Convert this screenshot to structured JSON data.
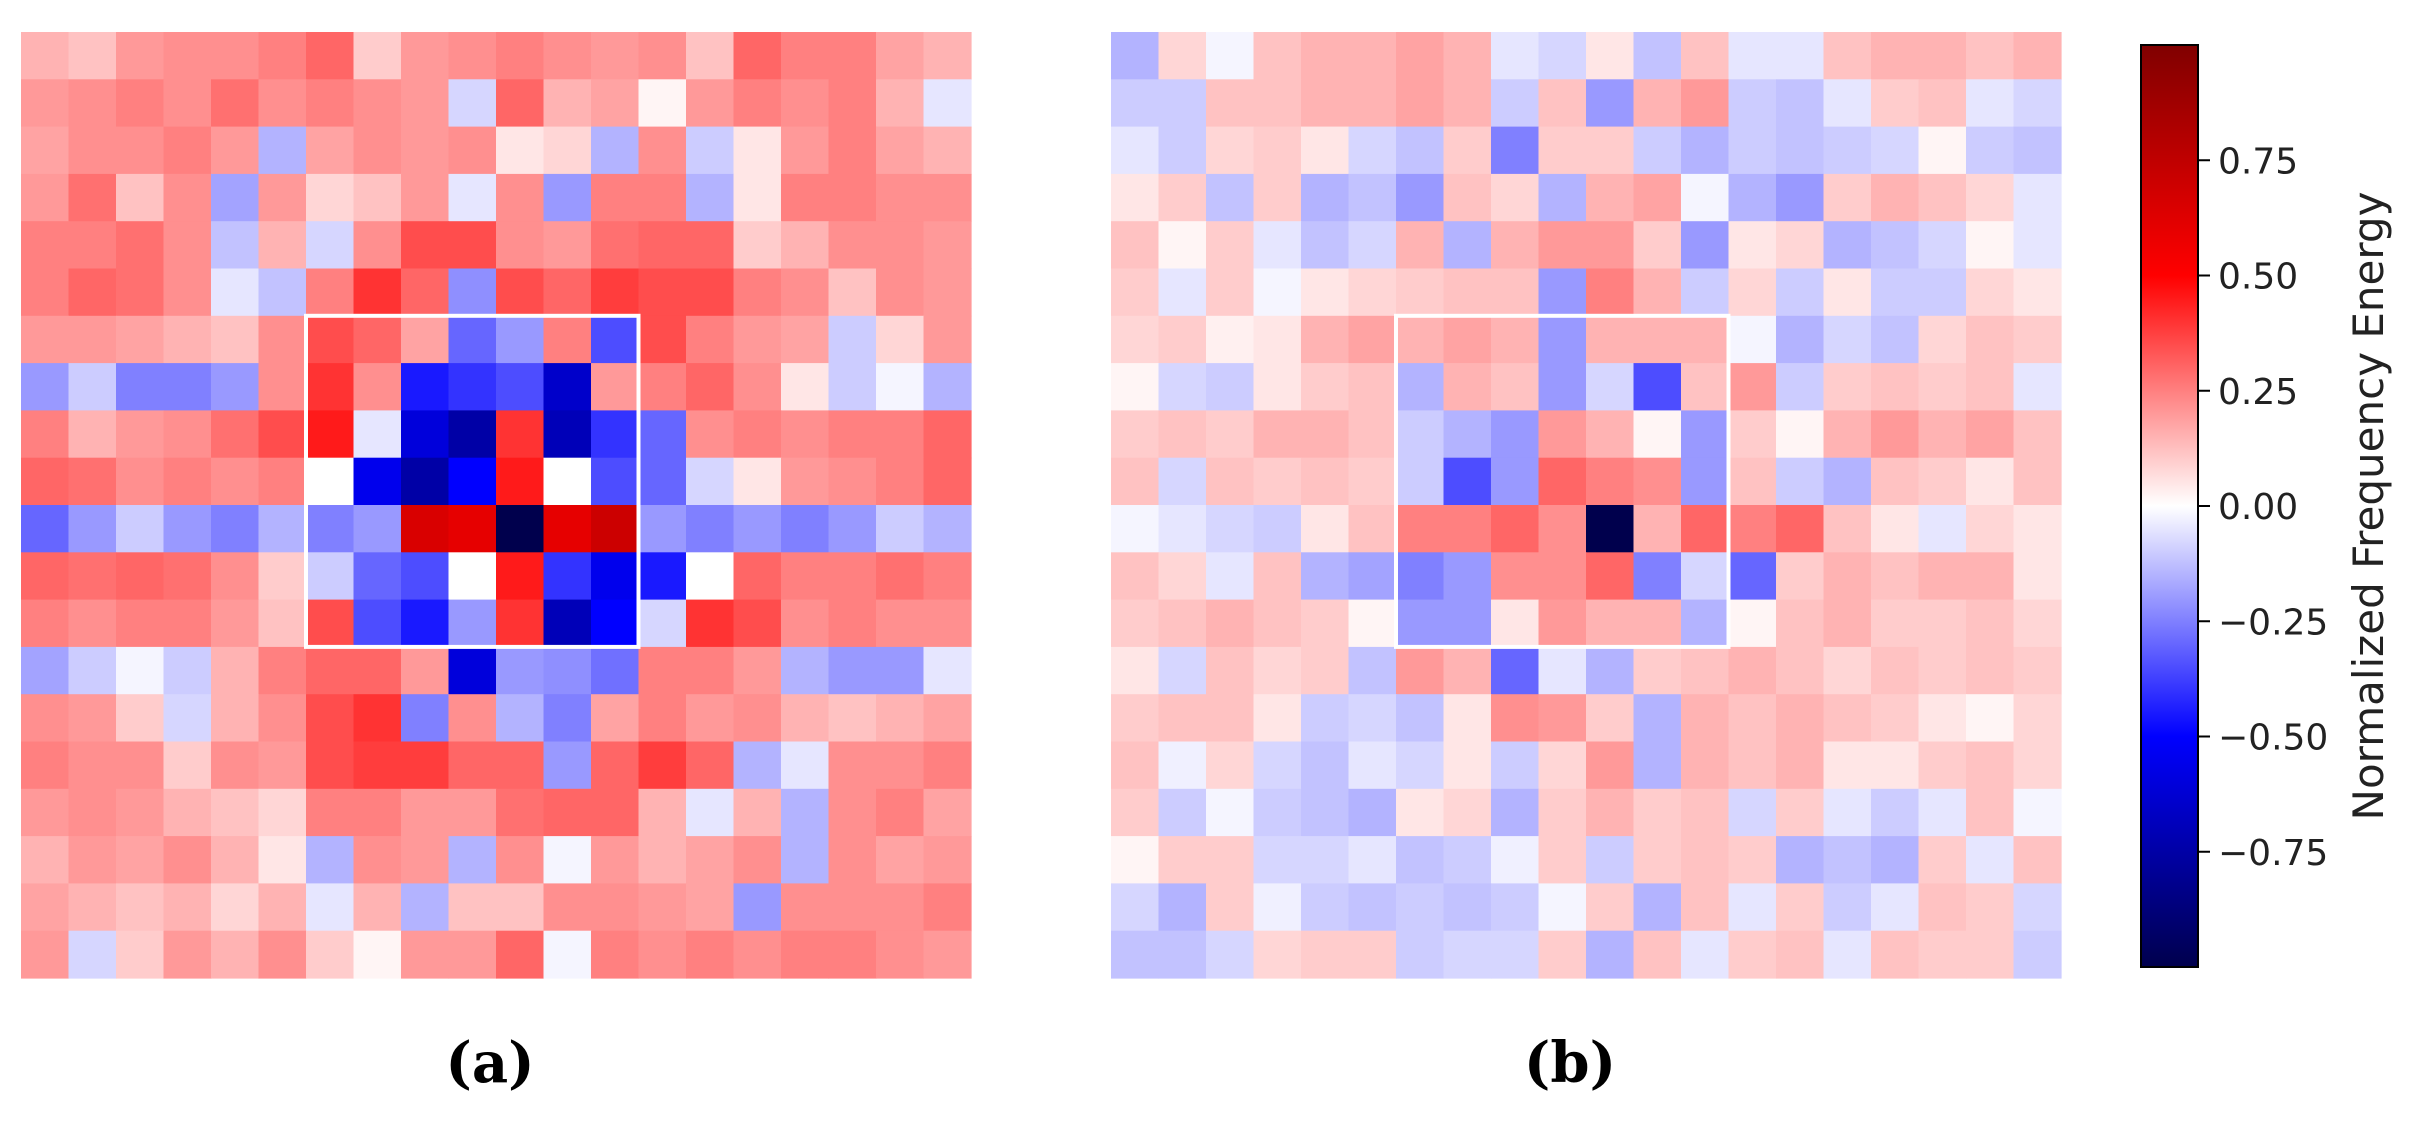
{
  "chart_data": [
    {
      "type": "heatmap",
      "panel_label": "(a)",
      "rows": 20,
      "cols": 20,
      "highlight_box": {
        "row_start": 6,
        "row_end": 13,
        "col_start": 6,
        "col_end": 13,
        "color": "#ffffff"
      },
      "values": [
        [
          0.15,
          0.12,
          0.2,
          0.22,
          0.22,
          0.25,
          0.3,
          0.1,
          0.2,
          0.22,
          0.25,
          0.22,
          0.2,
          0.22,
          0.12,
          0.3,
          0.25,
          0.25,
          0.18,
          0.15
        ],
        [
          0.2,
          0.22,
          0.25,
          0.22,
          0.28,
          0.22,
          0.25,
          0.22,
          0.2,
          -0.08,
          0.3,
          0.15,
          0.18,
          0.02,
          0.2,
          0.25,
          0.22,
          0.25,
          0.15,
          -0.05
        ],
        [
          0.18,
          0.22,
          0.22,
          0.25,
          0.2,
          -0.15,
          0.18,
          0.22,
          0.2,
          0.22,
          0.05,
          0.08,
          -0.15,
          0.22,
          -0.1,
          0.05,
          0.2,
          0.25,
          0.18,
          0.15
        ],
        [
          0.2,
          0.28,
          0.12,
          0.22,
          -0.18,
          0.2,
          0.08,
          0.12,
          0.2,
          -0.05,
          0.22,
          -0.2,
          0.25,
          0.25,
          -0.15,
          0.05,
          0.25,
          0.25,
          0.22,
          0.22
        ],
        [
          0.25,
          0.25,
          0.28,
          0.22,
          -0.12,
          0.15,
          -0.08,
          0.22,
          0.35,
          0.35,
          0.22,
          0.2,
          0.28,
          0.3,
          0.3,
          0.1,
          0.15,
          0.22,
          0.22,
          0.2
        ],
        [
          0.25,
          0.3,
          0.28,
          0.22,
          -0.05,
          -0.12,
          0.25,
          0.4,
          0.3,
          -0.22,
          0.35,
          0.3,
          0.38,
          0.35,
          0.35,
          0.25,
          0.22,
          0.12,
          0.22,
          0.2
        ],
        [
          0.2,
          0.2,
          0.18,
          0.15,
          0.12,
          0.22,
          0.35,
          0.3,
          0.18,
          -0.3,
          -0.2,
          0.25,
          -0.35,
          0.35,
          0.25,
          0.2,
          0.18,
          -0.1,
          0.08,
          0.2
        ],
        [
          -0.2,
          -0.1,
          -0.25,
          -0.25,
          -0.2,
          0.22,
          0.4,
          0.22,
          -0.45,
          -0.4,
          -0.35,
          -0.65,
          0.2,
          0.25,
          0.3,
          0.22,
          0.05,
          -0.1,
          -0.02,
          -0.15
        ],
        [
          0.25,
          0.15,
          0.2,
          0.22,
          0.28,
          0.35,
          0.45,
          -0.05,
          -0.6,
          -0.75,
          0.4,
          -0.7,
          -0.4,
          -0.3,
          0.22,
          0.25,
          0.22,
          0.25,
          0.25,
          0.3
        ],
        [
          0.3,
          0.28,
          0.22,
          0.25,
          0.22,
          0.25,
          0.0,
          -0.55,
          -0.75,
          -0.5,
          0.45,
          0.0,
          -0.35,
          -0.3,
          -0.08,
          0.05,
          0.2,
          0.22,
          0.25,
          0.3
        ],
        [
          -0.3,
          -0.2,
          -0.1,
          -0.2,
          -0.25,
          -0.15,
          -0.25,
          -0.2,
          0.65,
          0.6,
          -1.0,
          0.6,
          0.7,
          -0.2,
          -0.25,
          -0.2,
          -0.25,
          -0.2,
          -0.1,
          -0.15
        ],
        [
          0.3,
          0.28,
          0.3,
          0.28,
          0.22,
          0.1,
          -0.1,
          -0.3,
          -0.35,
          0.0,
          0.45,
          -0.4,
          -0.55,
          -0.45,
          0.0,
          0.3,
          0.25,
          0.25,
          0.28,
          0.25
        ],
        [
          0.25,
          0.22,
          0.25,
          0.25,
          0.2,
          0.12,
          0.35,
          -0.35,
          -0.45,
          -0.2,
          0.4,
          -0.7,
          -0.5,
          -0.08,
          0.4,
          0.35,
          0.22,
          0.25,
          0.22,
          0.22
        ],
        [
          -0.18,
          -0.1,
          -0.02,
          -0.1,
          0.15,
          0.25,
          0.3,
          0.3,
          0.2,
          -0.6,
          -0.2,
          -0.22,
          -0.28,
          0.25,
          0.25,
          0.2,
          -0.15,
          -0.2,
          -0.2,
          -0.05
        ],
        [
          0.22,
          0.2,
          0.1,
          -0.08,
          0.15,
          0.22,
          0.35,
          0.4,
          -0.25,
          0.22,
          -0.15,
          -0.25,
          0.18,
          0.25,
          0.2,
          0.22,
          0.15,
          0.12,
          0.15,
          0.18
        ],
        [
          0.25,
          0.22,
          0.22,
          0.1,
          0.22,
          0.2,
          0.35,
          0.38,
          0.38,
          0.3,
          0.3,
          -0.2,
          0.3,
          0.38,
          0.3,
          -0.15,
          -0.05,
          0.22,
          0.22,
          0.25
        ],
        [
          0.2,
          0.22,
          0.2,
          0.15,
          0.12,
          0.08,
          0.25,
          0.25,
          0.2,
          0.2,
          0.28,
          0.3,
          0.3,
          0.15,
          -0.05,
          0.15,
          -0.15,
          0.22,
          0.25,
          0.18
        ],
        [
          0.15,
          0.2,
          0.18,
          0.22,
          0.15,
          0.05,
          -0.15,
          0.22,
          0.2,
          -0.15,
          0.22,
          -0.02,
          0.2,
          0.15,
          0.18,
          0.22,
          -0.15,
          0.22,
          0.18,
          0.2
        ],
        [
          0.18,
          0.15,
          0.12,
          0.15,
          0.08,
          0.15,
          -0.05,
          0.15,
          -0.15,
          0.12,
          0.12,
          0.22,
          0.22,
          0.2,
          0.18,
          -0.2,
          0.22,
          0.22,
          0.22,
          0.25
        ],
        [
          0.2,
          -0.08,
          0.1,
          0.2,
          0.15,
          0.22,
          0.1,
          0.02,
          0.2,
          0.2,
          0.3,
          -0.02,
          0.25,
          0.22,
          0.25,
          0.22,
          0.25,
          0.25,
          0.22,
          0.2
        ]
      ]
    },
    {
      "type": "heatmap",
      "panel_label": "(b)",
      "rows": 20,
      "cols": 20,
      "highlight_box": {
        "row_start": 6,
        "row_end": 13,
        "col_start": 6,
        "col_end": 13,
        "color": "#ffffff"
      },
      "values": [
        [
          -0.15,
          0.08,
          -0.02,
          0.12,
          0.15,
          0.15,
          0.18,
          0.15,
          -0.05,
          -0.08,
          0.05,
          -0.12,
          0.12,
          -0.05,
          -0.05,
          0.12,
          0.15,
          0.15,
          0.12,
          0.15
        ],
        [
          -0.1,
          -0.1,
          0.12,
          0.12,
          0.15,
          0.15,
          0.18,
          0.15,
          -0.1,
          0.12,
          -0.2,
          0.15,
          0.2,
          -0.1,
          -0.12,
          -0.05,
          0.1,
          0.12,
          -0.05,
          -0.08
        ],
        [
          -0.05,
          -0.1,
          0.08,
          0.1,
          0.05,
          -0.08,
          -0.12,
          0.1,
          -0.25,
          0.1,
          0.1,
          -0.1,
          -0.15,
          -0.1,
          -0.12,
          -0.1,
          -0.08,
          0.02,
          -0.1,
          -0.12
        ],
        [
          0.05,
          0.1,
          -0.12,
          0.1,
          -0.15,
          -0.12,
          -0.2,
          0.12,
          0.08,
          -0.15,
          0.15,
          0.18,
          -0.02,
          -0.15,
          -0.2,
          0.1,
          0.15,
          0.12,
          0.08,
          -0.05
        ],
        [
          0.12,
          0.02,
          0.1,
          -0.05,
          -0.12,
          -0.08,
          0.15,
          -0.15,
          0.15,
          0.2,
          0.2,
          0.1,
          -0.2,
          0.05,
          0.08,
          -0.15,
          -0.12,
          -0.08,
          0.02,
          -0.05
        ],
        [
          0.1,
          -0.05,
          0.1,
          -0.02,
          0.05,
          0.08,
          0.1,
          0.12,
          0.12,
          -0.2,
          0.25,
          0.15,
          -0.1,
          0.08,
          -0.1,
          0.05,
          -0.1,
          -0.1,
          0.08,
          0.05
        ],
        [
          0.08,
          0.1,
          0.03,
          0.05,
          0.15,
          0.18,
          0.15,
          0.18,
          0.15,
          -0.2,
          0.15,
          0.15,
          0.15,
          -0.02,
          -0.15,
          -0.08,
          -0.12,
          0.08,
          0.12,
          0.1
        ],
        [
          0.02,
          -0.08,
          -0.1,
          0.05,
          0.1,
          0.12,
          -0.15,
          0.15,
          0.12,
          -0.2,
          -0.08,
          -0.35,
          0.12,
          0.2,
          -0.1,
          0.1,
          0.12,
          0.1,
          0.12,
          -0.05
        ],
        [
          0.1,
          0.12,
          0.1,
          0.15,
          0.15,
          0.12,
          -0.1,
          -0.15,
          -0.2,
          0.2,
          0.15,
          0.02,
          -0.2,
          0.1,
          0.02,
          0.15,
          0.2,
          0.15,
          0.18,
          0.12
        ],
        [
          0.12,
          -0.08,
          0.12,
          0.1,
          0.12,
          0.1,
          -0.1,
          -0.35,
          -0.2,
          0.3,
          0.25,
          0.22,
          -0.2,
          0.12,
          -0.1,
          -0.15,
          0.12,
          0.1,
          0.05,
          0.12
        ],
        [
          -0.02,
          -0.05,
          -0.08,
          -0.1,
          0.05,
          0.12,
          0.25,
          0.25,
          0.3,
          0.22,
          -1.0,
          0.15,
          0.3,
          0.25,
          0.3,
          0.12,
          0.05,
          -0.05,
          0.08,
          0.05
        ],
        [
          0.12,
          0.08,
          -0.05,
          0.12,
          -0.15,
          -0.18,
          -0.25,
          -0.2,
          0.22,
          0.22,
          0.3,
          -0.25,
          -0.08,
          -0.3,
          0.1,
          0.15,
          0.12,
          0.15,
          0.15,
          0.05
        ],
        [
          0.1,
          0.12,
          0.15,
          0.12,
          0.1,
          0.02,
          -0.2,
          -0.2,
          0.05,
          0.2,
          0.15,
          0.15,
          -0.15,
          0.02,
          0.12,
          0.15,
          0.1,
          0.1,
          0.12,
          0.08
        ],
        [
          0.05,
          -0.08,
          0.12,
          0.08,
          0.1,
          -0.12,
          0.2,
          0.15,
          -0.3,
          -0.05,
          -0.15,
          0.1,
          0.12,
          0.15,
          0.12,
          0.08,
          0.12,
          0.1,
          0.12,
          0.1
        ],
        [
          0.1,
          0.12,
          0.12,
          0.05,
          -0.1,
          -0.08,
          -0.12,
          0.05,
          0.22,
          0.2,
          0.1,
          -0.15,
          0.15,
          0.12,
          0.15,
          0.12,
          0.1,
          0.05,
          0.02,
          0.08
        ],
        [
          0.12,
          -0.03,
          0.08,
          -0.08,
          -0.12,
          -0.05,
          -0.08,
          0.05,
          -0.1,
          0.08,
          0.2,
          -0.15,
          0.15,
          0.12,
          0.15,
          0.05,
          0.05,
          0.1,
          0.12,
          0.08
        ],
        [
          0.1,
          -0.1,
          -0.02,
          -0.1,
          -0.12,
          -0.15,
          0.05,
          0.08,
          -0.15,
          0.1,
          0.15,
          0.1,
          0.12,
          -0.08,
          0.1,
          -0.05,
          -0.1,
          -0.05,
          0.12,
          -0.02
        ],
        [
          0.02,
          0.1,
          0.1,
          -0.08,
          -0.08,
          -0.05,
          -0.12,
          -0.1,
          -0.03,
          0.1,
          -0.1,
          0.1,
          0.12,
          0.1,
          -0.15,
          -0.12,
          -0.15,
          0.1,
          -0.05,
          0.12
        ],
        [
          -0.08,
          -0.15,
          0.1,
          -0.03,
          -0.1,
          -0.12,
          -0.1,
          -0.12,
          -0.1,
          -0.02,
          0.1,
          -0.15,
          0.12,
          -0.05,
          0.1,
          -0.1,
          -0.05,
          0.12,
          0.1,
          -0.08
        ],
        [
          -0.12,
          -0.12,
          -0.08,
          0.08,
          0.1,
          0.1,
          -0.1,
          -0.08,
          -0.08,
          0.1,
          -0.15,
          0.12,
          -0.05,
          0.1,
          0.12,
          -0.05,
          0.12,
          0.1,
          0.1,
          -0.1
        ]
      ]
    }
  ],
  "colorbar": {
    "label": "Normalized Frequency Energy",
    "cmap": "seismic",
    "min": -1.0,
    "max": 1.0,
    "ticks": [
      0.75,
      0.5,
      0.25,
      0.0,
      -0.25,
      -0.5,
      -0.75
    ],
    "tick_labels": [
      "0.75",
      "0.50",
      "0.25",
      "0.00",
      "−0.25",
      "−0.50",
      "−0.75"
    ],
    "colors": {
      "low": "#00004d",
      "mid_low": "#0000ff",
      "center": "#ffffff",
      "mid_high": "#ff0000",
      "high": "#800000"
    }
  }
}
